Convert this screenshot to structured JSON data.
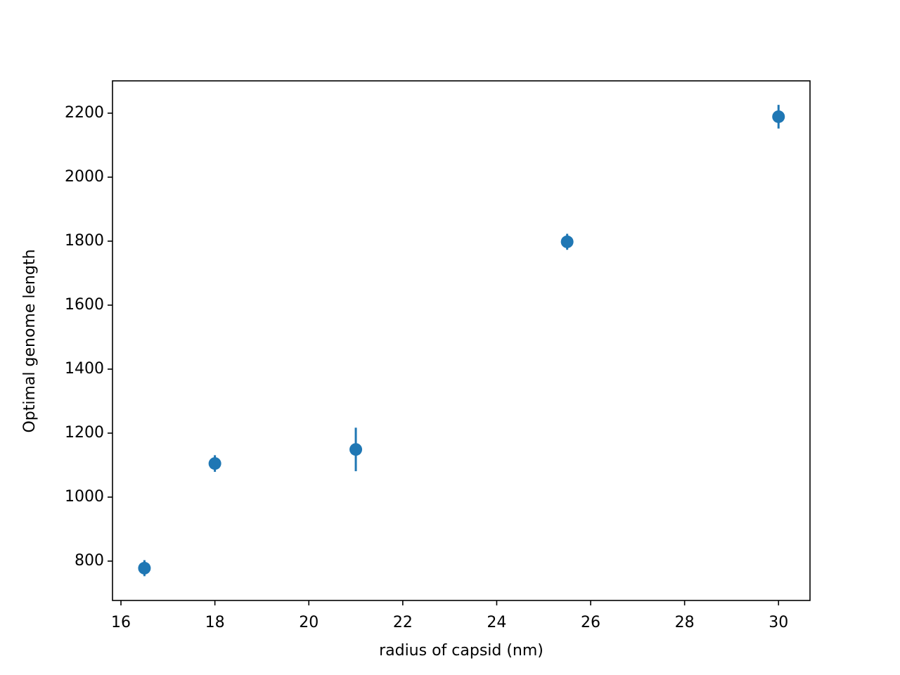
{
  "chart_data": {
    "type": "scatter",
    "x_label": "radius of capsid (nm)",
    "y_label": "Optimal genome length",
    "x": [
      16.5,
      18,
      21,
      25.5,
      30
    ],
    "series": [
      {
        "color": "#1f77b4",
        "values": [
          778,
          1105,
          1149,
          1798,
          2189
        ],
        "errors": [
          25,
          26,
          68,
          25,
          37
        ]
      }
    ],
    "xlim": [
      15.82,
      30.67
    ],
    "ylim": [
      677,
      2301
    ],
    "xticks": [
      16,
      18,
      20,
      22,
      24,
      26,
      28,
      30
    ],
    "yticks": [
      800,
      1000,
      1200,
      1400,
      1600,
      1800,
      2000,
      2200
    ],
    "grid": false
  }
}
